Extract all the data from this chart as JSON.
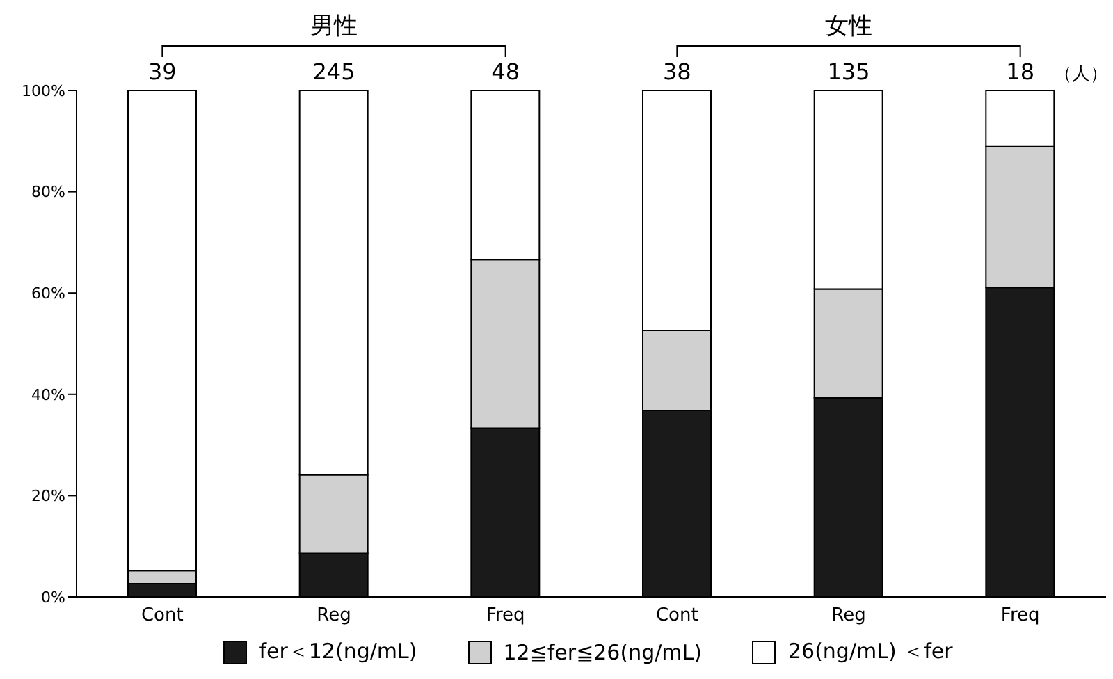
{
  "chart_data": {
    "type": "bar",
    "stacked": true,
    "categories": [
      "Cont",
      "Reg",
      "Freq",
      "Cont",
      "Reg",
      "Freq"
    ],
    "series": [
      {
        "name": "fer＜12(ng/mL)",
        "color": "#1a1a1a",
        "values": [
          2.6,
          8.6,
          33.3,
          36.8,
          39.3,
          61.1
        ]
      },
      {
        "name": "12≦fer≦26(ng/mL)",
        "color": "#d0d0d0",
        "values": [
          2.6,
          15.5,
          33.3,
          15.8,
          21.5,
          27.8
        ]
      },
      {
        "name": "26(ng/mL) ＜fer",
        "color": "#ffffff",
        "values": [
          94.8,
          75.9,
          33.4,
          47.4,
          39.2,
          11.1
        ]
      }
    ],
    "ylim": [
      0,
      100
    ],
    "yticks": [
      {
        "value": 0,
        "label": "0%"
      },
      {
        "value": 20,
        "label": "20%"
      },
      {
        "value": 40,
        "label": "40%"
      },
      {
        "value": 60,
        "label": "60%"
      },
      {
        "value": 80,
        "label": "80%"
      },
      {
        "value": 100,
        "label": "100%"
      }
    ],
    "grid": false,
    "legend": "bottom",
    "annotations": [
      "39",
      "245",
      "48",
      "38",
      "135",
      "18",
      "（人）",
      "男性",
      "女性"
    ]
  }
}
